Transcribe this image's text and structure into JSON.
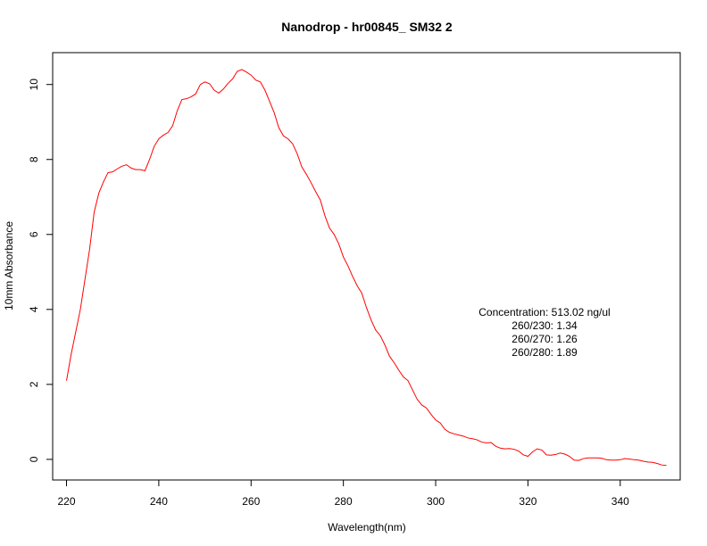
{
  "chart_data": {
    "type": "line",
    "title": "Nanodrop - hr00845_ SM32 2",
    "xlabel": "Wavelength(nm)",
    "ylabel": "10mm Absorbance",
    "xlim": [
      217,
      353
    ],
    "ylim": [
      -0.55,
      10.85
    ],
    "x_ticks": [
      220,
      240,
      260,
      280,
      300,
      320,
      340
    ],
    "y_ticks": [
      0,
      2,
      4,
      6,
      8,
      10
    ],
    "grid": false,
    "line_color": "#ff0000",
    "series": [
      {
        "x": [
          220,
          221,
          222,
          223,
          224,
          225,
          226,
          227,
          228,
          229,
          230,
          231,
          232,
          233,
          234,
          235,
          236,
          237,
          238,
          239,
          240,
          241,
          242,
          243,
          244,
          245,
          246,
          247,
          248,
          249,
          250,
          251,
          252,
          253,
          254,
          255,
          256,
          257,
          258,
          259,
          260,
          261,
          262,
          263,
          264,
          265,
          266,
          267,
          268,
          269,
          270,
          271,
          272,
          273,
          274,
          275,
          276,
          277,
          278,
          279,
          280,
          281,
          282,
          283,
          284,
          285,
          286,
          287,
          288,
          289,
          290,
          291,
          292,
          293,
          294,
          295,
          296,
          297,
          298,
          299,
          300,
          301,
          302,
          303,
          304,
          305,
          306,
          307,
          308,
          309,
          310,
          311,
          312,
          313,
          314,
          315,
          316,
          317,
          318,
          319,
          320,
          321,
          322,
          323,
          324,
          325,
          326,
          327,
          328,
          329,
          330,
          331,
          332,
          333,
          334,
          335,
          336,
          337,
          338,
          339,
          340,
          341,
          342,
          343,
          344,
          345,
          346,
          347,
          348,
          349,
          350
        ],
        "y": [
          2.1,
          2.8,
          3.4,
          4.0,
          4.8,
          5.6,
          6.6,
          7.1,
          7.4,
          7.65,
          7.67,
          7.75,
          7.82,
          7.86,
          7.77,
          7.73,
          7.73,
          7.7,
          8.0,
          8.35,
          8.55,
          8.65,
          8.72,
          8.9,
          9.3,
          9.6,
          9.62,
          9.67,
          9.75,
          10.0,
          10.07,
          10.02,
          9.85,
          9.77,
          9.88,
          10.03,
          10.15,
          10.35,
          10.4,
          10.33,
          10.25,
          10.12,
          10.07,
          9.85,
          9.55,
          9.25,
          8.85,
          8.63,
          8.55,
          8.42,
          8.15,
          7.8,
          7.6,
          7.38,
          7.14,
          6.92,
          6.5,
          6.17,
          6.0,
          5.75,
          5.4,
          5.16,
          4.88,
          4.63,
          4.43,
          4.05,
          3.72,
          3.45,
          3.3,
          3.05,
          2.75,
          2.58,
          2.38,
          2.2,
          2.1,
          1.85,
          1.6,
          1.45,
          1.37,
          1.2,
          1.05,
          0.97,
          0.8,
          0.72,
          0.68,
          0.65,
          0.62,
          0.57,
          0.55,
          0.52,
          0.46,
          0.44,
          0.45,
          0.35,
          0.3,
          0.28,
          0.29,
          0.27,
          0.22,
          0.12,
          0.08,
          0.2,
          0.28,
          0.25,
          0.12,
          0.11,
          0.13,
          0.17,
          0.14,
          0.08,
          -0.02,
          -0.03,
          0.02,
          0.04,
          0.04,
          0.04,
          0.03,
          -0.01,
          -0.02,
          -0.02,
          -0.01,
          0.02,
          0.01,
          -0.01,
          -0.02,
          -0.05,
          -0.07,
          -0.08,
          -0.11,
          -0.15,
          -0.16
        ]
      }
    ],
    "annotation_lines": [
      "Concentration: 513.02 ng/ul",
      "260/230: 1.34",
      "260/270: 1.26",
      "260/280: 1.89"
    ]
  }
}
